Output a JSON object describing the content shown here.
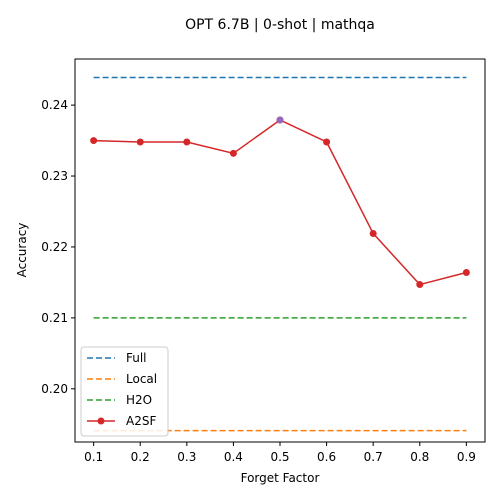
{
  "chart_data": {
    "type": "line",
    "title": "OPT 6.7B | 0-shot | mathqa",
    "xlabel": "Forget Factor",
    "ylabel": "Accuracy",
    "xlim": [
      0.06,
      0.94
    ],
    "ylim": [
      0.1925,
      0.2465
    ],
    "xticks": [
      0.1,
      0.2,
      0.3,
      0.4,
      0.5,
      0.6,
      0.7,
      0.8,
      0.9
    ],
    "xtick_labels": [
      "0.1",
      "0.2",
      "0.3",
      "0.4",
      "0.5",
      "0.6",
      "0.7",
      "0.8",
      "0.9"
    ],
    "yticks": [
      0.2,
      0.21,
      0.22,
      0.23,
      0.24
    ],
    "ytick_labels": [
      "0.20",
      "0.21",
      "0.22",
      "0.23",
      "0.24"
    ],
    "grid": false,
    "legend_position": "lower-left",
    "series": [
      {
        "name": "Full",
        "style": "dashed",
        "color": "#1f77b4",
        "x": [
          0.1,
          0.9
        ],
        "y": [
          0.2439,
          0.2439
        ]
      },
      {
        "name": "Local",
        "style": "dashed",
        "color": "#ff7f0e",
        "x": [
          0.1,
          0.9
        ],
        "y": [
          0.1941,
          0.1941
        ]
      },
      {
        "name": "H2O",
        "style": "dashed",
        "color": "#2ca02c",
        "x": [
          0.1,
          0.9
        ],
        "y": [
          0.21,
          0.21
        ]
      },
      {
        "name": "A2SF",
        "style": "solid-marker",
        "color": "#d62728",
        "x": [
          0.1,
          0.2,
          0.3,
          0.4,
          0.5,
          0.6,
          0.7,
          0.8,
          0.9
        ],
        "y": [
          0.235,
          0.2348,
          0.2348,
          0.2332,
          0.2379,
          0.2348,
          0.2219,
          0.2147,
          0.2164
        ]
      }
    ],
    "highlight_point": {
      "x": 0.5,
      "y": 0.2379,
      "color": "#9467bd"
    }
  }
}
